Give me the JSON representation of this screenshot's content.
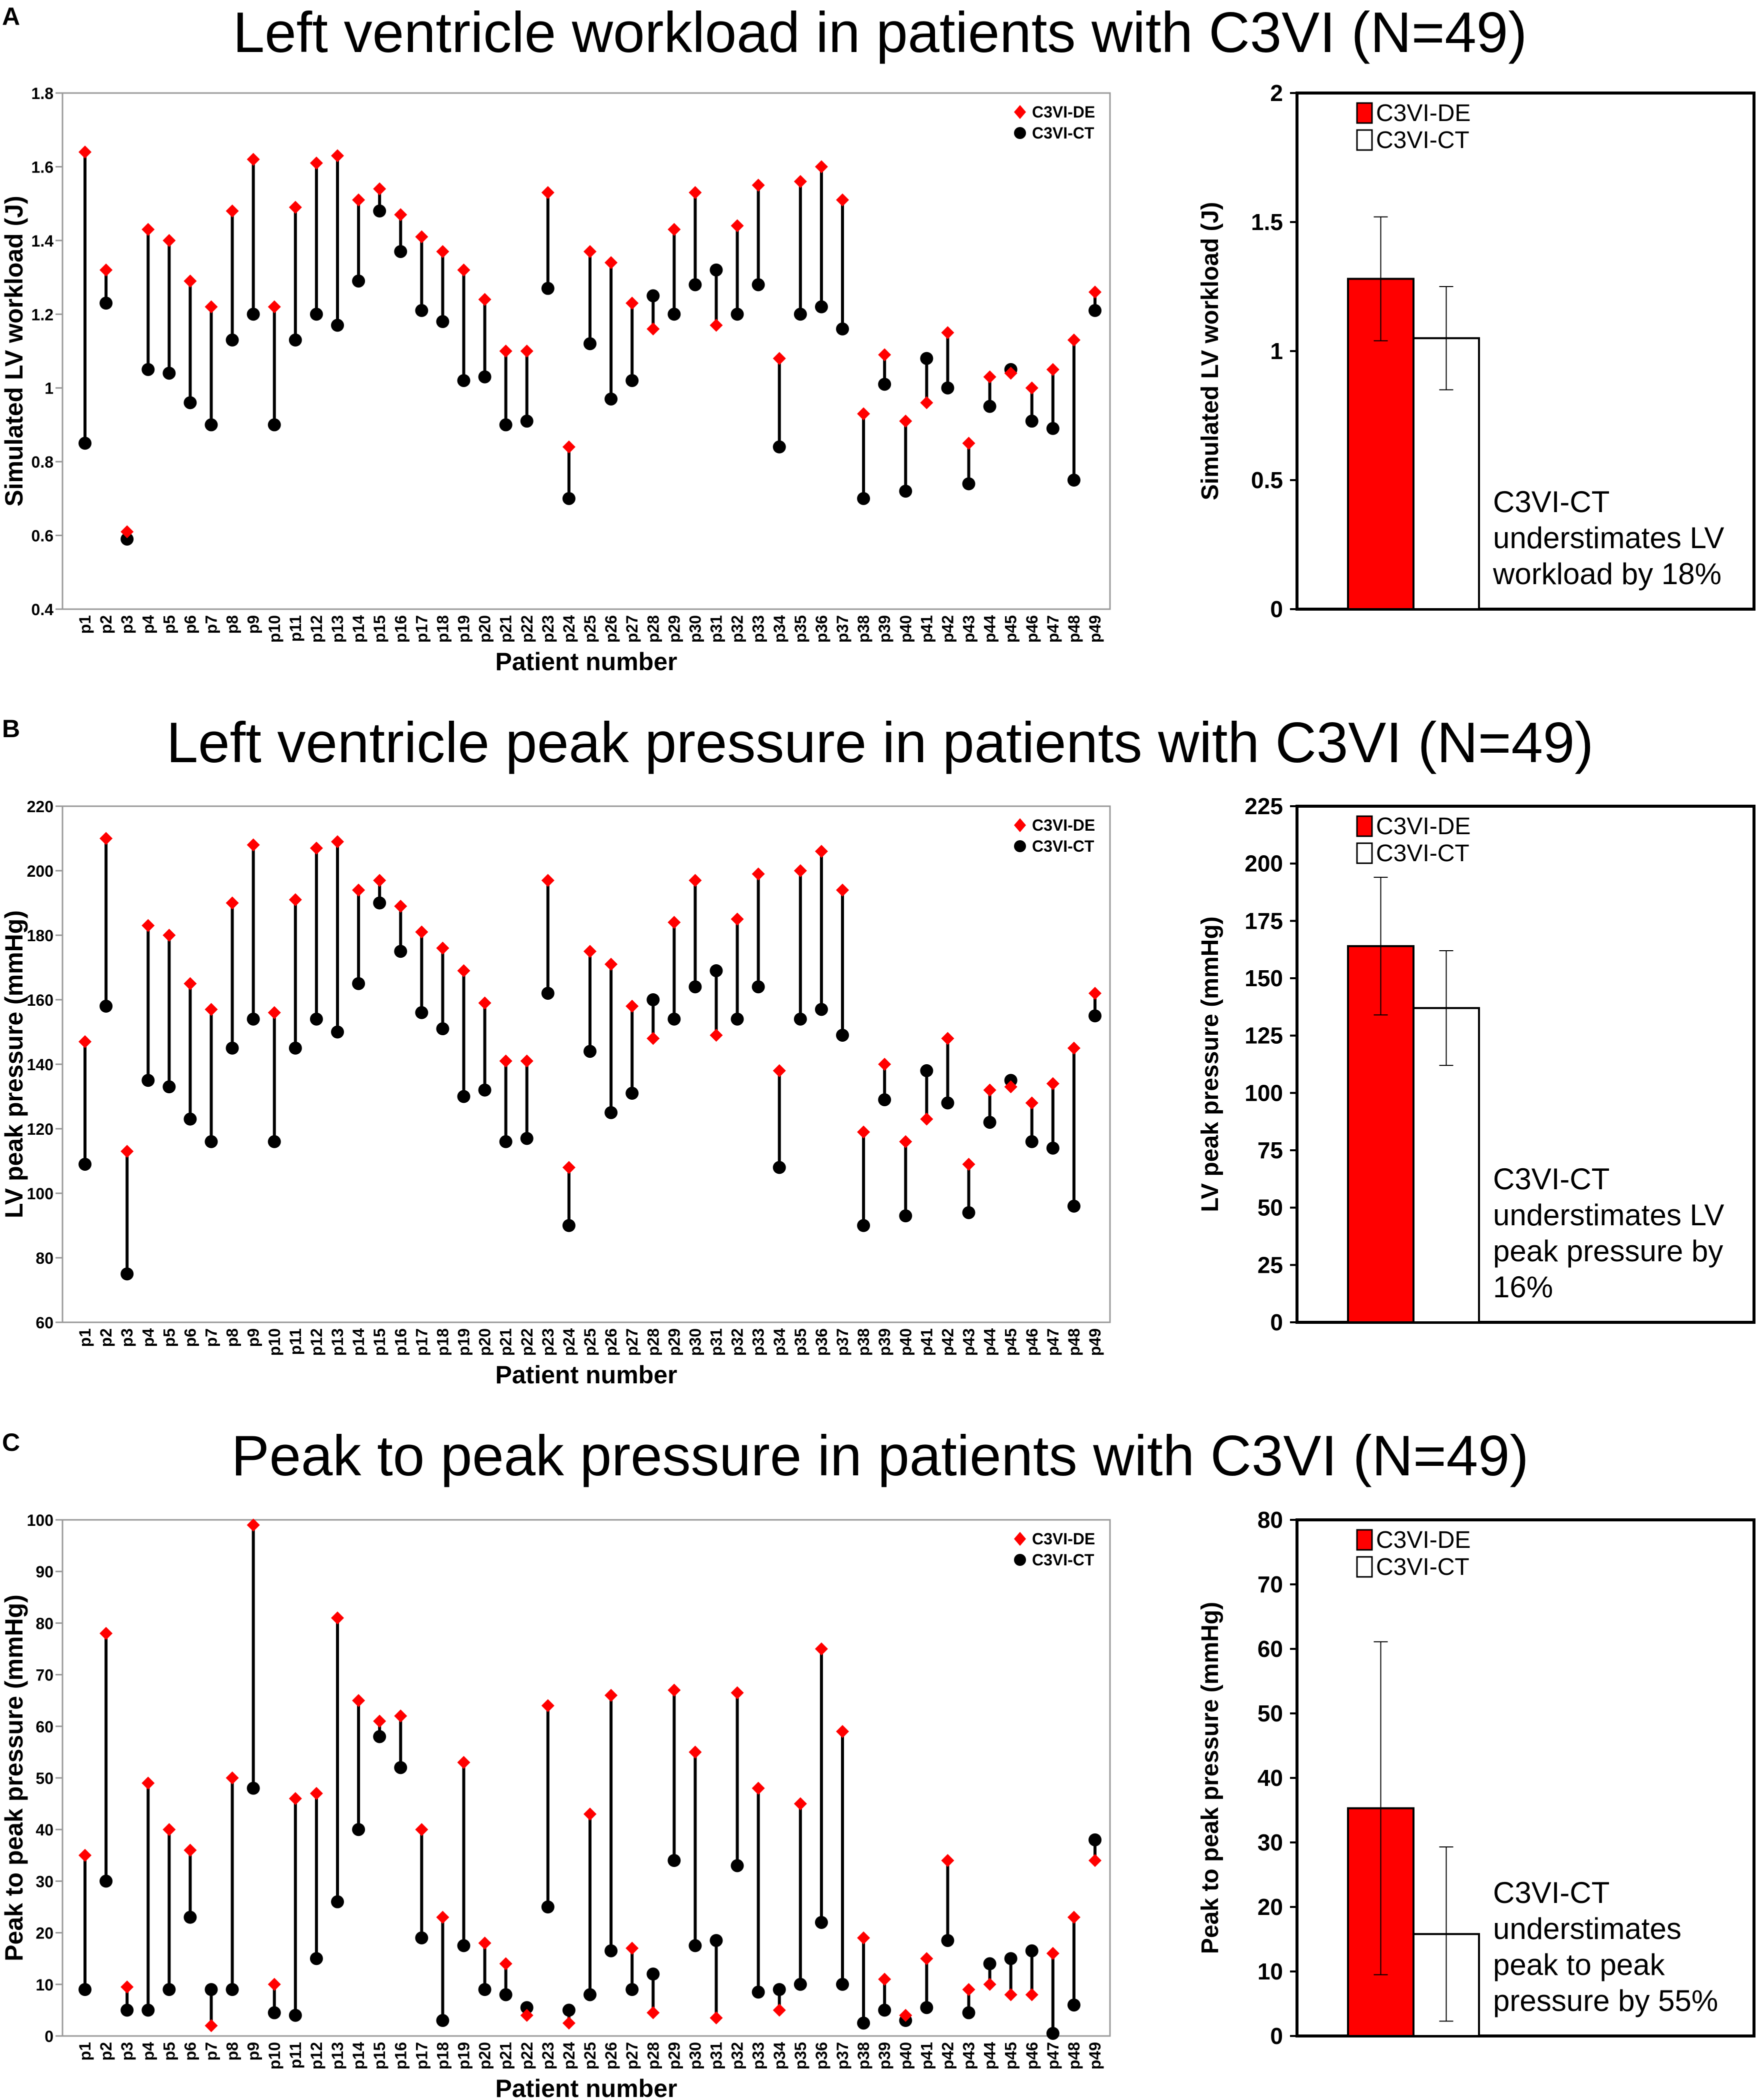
{
  "patients": [
    "p1",
    "p2",
    "p3",
    "p4",
    "p5",
    "p6",
    "p7",
    "p8",
    "p9",
    "p10",
    "p11",
    "p12",
    "p13",
    "p14",
    "p15",
    "p16",
    "p17",
    "p18",
    "p19",
    "p20",
    "p21",
    "p22",
    "p23",
    "p24",
    "p25",
    "p26",
    "p27",
    "p28",
    "p29",
    "p30",
    "p31",
    "p32",
    "p33",
    "p34",
    "p35",
    "p36",
    "p37",
    "p38",
    "p39",
    "p40",
    "p41",
    "p42",
    "p43",
    "p44",
    "p45",
    "p46",
    "p47",
    "p48",
    "p49"
  ],
  "chart_data": [
    {
      "panel": "A",
      "title": "Left ventricle workload in patients with C3VI (N=49)",
      "type": "scatter",
      "xlabel": "Patient number",
      "ylabel": "Simulated LV workload (J)",
      "ylim": [
        0.4,
        1.8
      ],
      "yticks": [
        "0.4",
        "0.6",
        "0.8",
        "1",
        "1.2",
        "1.4",
        "1.6",
        "1.8"
      ],
      "legend_position": "top-right",
      "series": [
        {
          "name": "C3VI-DE",
          "values": [
            1.64,
            1.32,
            0.61,
            1.43,
            1.4,
            1.29,
            1.22,
            1.48,
            1.62,
            1.22,
            1.49,
            1.61,
            1.63,
            1.51,
            1.54,
            1.47,
            1.41,
            1.37,
            1.32,
            1.24,
            1.1,
            1.1,
            1.53,
            0.84,
            1.37,
            1.34,
            1.23,
            1.16,
            1.43,
            1.53,
            1.17,
            1.44,
            1.55,
            1.08,
            1.56,
            1.6,
            1.51,
            0.93,
            1.09,
            0.91,
            0.96,
            1.15,
            0.85,
            1.03,
            1.04,
            1.0,
            1.05,
            1.13,
            1.26
          ]
        },
        {
          "name": "C3VI-CT",
          "values": [
            0.85,
            1.23,
            0.59,
            1.05,
            1.04,
            0.96,
            0.9,
            1.13,
            1.2,
            0.9,
            1.13,
            1.2,
            1.17,
            1.29,
            1.48,
            1.37,
            1.21,
            1.18,
            1.02,
            1.03,
            0.9,
            0.91,
            1.27,
            0.7,
            1.12,
            0.97,
            1.02,
            1.25,
            1.2,
            1.28,
            1.32,
            1.2,
            1.28,
            0.84,
            1.2,
            1.22,
            1.16,
            0.7,
            1.01,
            0.72,
            1.08,
            1.0,
            0.74,
            0.95,
            1.05,
            0.91,
            0.89,
            0.75,
            1.21
          ]
        }
      ],
      "bar": {
        "ylabel": "Simulated LV workload (J)",
        "ylim": [
          0,
          2
        ],
        "yticks": [
          "0",
          "0.5",
          "1",
          "1.5",
          "2"
        ],
        "categories": [
          "C3VI-DE",
          "C3VI-CT"
        ],
        "values": [
          1.28,
          1.05
        ],
        "errors": [
          0.24,
          0.2
        ],
        "annotation": [
          "C3VI-CT",
          "understimates LV",
          "workload by 18%"
        ]
      }
    },
    {
      "panel": "B",
      "title": "Left ventricle peak pressure in patients with C3VI (N=49)",
      "type": "scatter",
      "xlabel": "Patient number",
      "ylabel": "LV peak pressure (mmHg)",
      "ylim": [
        60,
        220
      ],
      "yticks": [
        "60",
        "80",
        "100",
        "120",
        "140",
        "160",
        "180",
        "200",
        "220"
      ],
      "legend_position": "top-right",
      "series": [
        {
          "name": "C3VI-DE",
          "values": [
            147,
            210,
            113,
            183,
            180,
            165,
            157,
            190,
            208,
            156,
            191,
            207,
            209,
            194,
            197,
            189,
            181,
            176,
            169,
            159,
            141,
            141,
            197,
            108,
            175,
            171,
            158,
            148,
            184,
            197,
            149,
            185,
            199,
            138,
            200,
            206,
            194,
            119,
            140,
            116,
            123,
            148,
            109,
            132,
            133,
            128,
            134,
            145,
            162
          ]
        },
        {
          "name": "C3VI-CT",
          "values": [
            109,
            158,
            75,
            135,
            133,
            123,
            116,
            145,
            154,
            116,
            145,
            154,
            150,
            165,
            190,
            175,
            156,
            151,
            130,
            132,
            116,
            117,
            162,
            90,
            144,
            125,
            131,
            160,
            154,
            164,
            169,
            154,
            164,
            108,
            154,
            157,
            149,
            90,
            129,
            93,
            138,
            128,
            94,
            122,
            135,
            116,
            114,
            96,
            155
          ]
        }
      ],
      "bar": {
        "ylabel": "LV peak pressure (mmHg)",
        "ylim": [
          0,
          225
        ],
        "yticks": [
          "0",
          "25",
          "50",
          "75",
          "100",
          "125",
          "150",
          "175",
          "200",
          "225"
        ],
        "categories": [
          "C3VI-DE",
          "C3VI-CT"
        ],
        "values": [
          164,
          137
        ],
        "errors": [
          30,
          25
        ],
        "annotation": [
          "C3VI-CT",
          "understimates LV",
          "peak pressure by",
          "16%"
        ]
      }
    },
    {
      "panel": "C",
      "title": "Peak to peak pressure in patients with C3VI (N=49)",
      "type": "scatter",
      "xlabel": "Patient number",
      "ylabel": "Peak to peak pressure (mmHg)",
      "ylim": [
        0,
        100
      ],
      "yticks": [
        "0",
        "10",
        "20",
        "30",
        "40",
        "50",
        "60",
        "70",
        "80",
        "90",
        "100"
      ],
      "legend_position": "top-right",
      "series": [
        {
          "name": "C3VI-DE",
          "values": [
            35,
            78,
            9.5,
            49,
            40,
            36,
            2,
            50,
            99,
            10,
            46,
            47,
            81,
            65,
            61,
            62,
            40,
            23,
            53,
            18,
            14,
            4,
            64,
            2.5,
            43,
            66,
            17,
            4.5,
            67,
            55,
            3.5,
            66.5,
            48,
            5,
            45,
            75,
            59,
            19,
            11,
            4,
            15,
            34,
            9,
            10,
            8,
            8,
            16,
            23,
            34
          ]
        },
        {
          "name": "C3VI-CT",
          "values": [
            9,
            30,
            5,
            5,
            9,
            23,
            9,
            9,
            48,
            4.5,
            4,
            15,
            26,
            40,
            58,
            52,
            19,
            3,
            17.5,
            9,
            8,
            5.5,
            25,
            5,
            8,
            16.5,
            9,
            12,
            34,
            17.5,
            18.5,
            33,
            8.5,
            9,
            10,
            22,
            10,
            2.5,
            5,
            3,
            5.5,
            18.5,
            4.5,
            14,
            15,
            16.5,
            0.5,
            6,
            38
          ]
        }
      ],
      "bar": {
        "ylabel": "Peak to peak pressure (mmHg)",
        "ylim": [
          0,
          80
        ],
        "yticks": [
          "0",
          "10",
          "20",
          "30",
          "40",
          "50",
          "60",
          "70",
          "80"
        ],
        "categories": [
          "C3VI-DE",
          "C3VI-CT"
        ],
        "values": [
          35.3,
          15.8
        ],
        "errors": [
          25.8,
          13.5
        ],
        "annotation": [
          "C3VI-CT",
          "understimates",
          "peak to peak",
          "pressure by 55%"
        ]
      }
    }
  ],
  "colors": {
    "de": "#ff0000",
    "ct": "#000000",
    "axis": "#999999",
    "bar_border": "#000000"
  }
}
